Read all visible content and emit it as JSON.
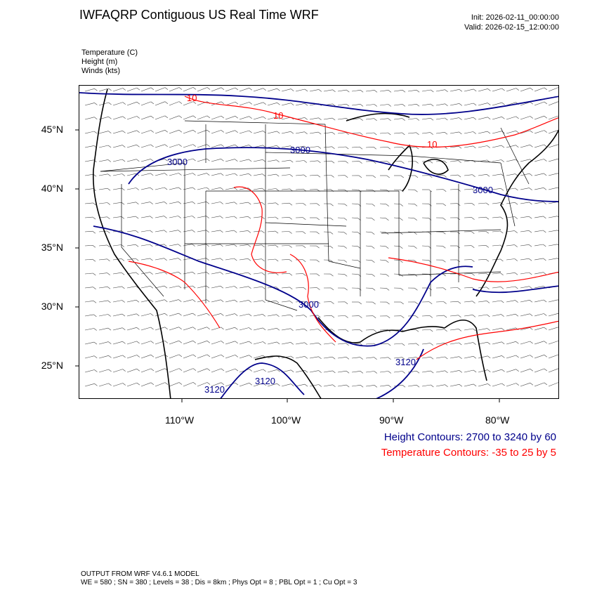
{
  "header": {
    "title": "IWFAQRP Contiguous US Real Time WRF",
    "init": "Init: 2026-02-11_00:00:00",
    "valid": "Valid: 2026-02-15_12:00:00"
  },
  "variables": {
    "temperature": "Temperature   (C)",
    "height": "Height   (m)",
    "winds": "Winds   (kts)"
  },
  "axes": {
    "lat_labels": [
      "45°N",
      "40°N",
      "35°N",
      "30°N",
      "25°N"
    ],
    "lon_labels": [
      "110°W",
      "100°W",
      "90°W",
      "80°W"
    ]
  },
  "contour_labels": {
    "height": [
      "3000",
      "3000",
      "3000",
      "3000",
      "3120",
      "3120",
      "3120"
    ],
    "temperature": [
      "10",
      "10",
      "10"
    ]
  },
  "legend": {
    "height": "Height Contours: 2700 to 3240 by 60",
    "temperature": "Temperature Contours: -35 to 25 by 5"
  },
  "colors": {
    "height_contour": "#00008b",
    "temperature_contour": "#ff0000",
    "boundaries": "#000000"
  },
  "footer": {
    "line1": "OUTPUT FROM WRF V4.6.1 MODEL",
    "line2": "WE = 580 ; SN = 380 ; Levels = 38 ; Dis = 8km ; Phys Opt = 8 ; PBL Opt = 1 ; Cu Opt = 3"
  }
}
